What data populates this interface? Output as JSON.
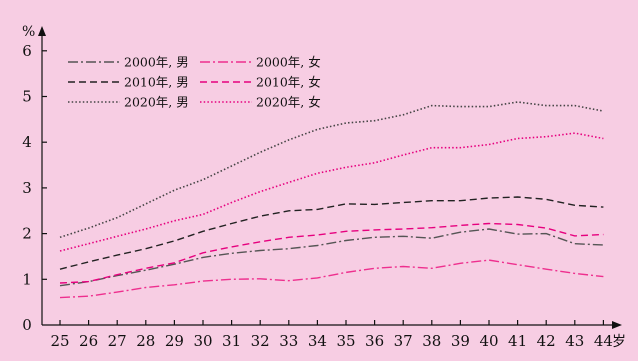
{
  "chart_data": {
    "type": "line",
    "ylabel": "%",
    "xunit": "岁",
    "ylim": [
      0,
      6
    ],
    "yticks": [
      "0",
      "1",
      "2",
      "3",
      "4",
      "5",
      "6"
    ],
    "x": [
      25,
      26,
      27,
      28,
      29,
      30,
      31,
      32,
      33,
      34,
      35,
      36,
      37,
      38,
      39,
      40,
      41,
      42,
      43,
      44
    ],
    "xtick_labels": [
      "25",
      "26",
      "27",
      "28",
      "29",
      "30",
      "31",
      "32",
      "33",
      "34",
      "35",
      "36",
      "37",
      "38",
      "39",
      "40",
      "41",
      "42",
      "43",
      "44"
    ],
    "grid": false,
    "legend_position": "top-left",
    "series": [
      {
        "name": "2000年, 男",
        "color": "#555555",
        "dash": "dashdot",
        "values": [
          0.86,
          0.95,
          1.08,
          1.2,
          1.33,
          1.48,
          1.57,
          1.63,
          1.67,
          1.74,
          1.85,
          1.92,
          1.94,
          1.9,
          2.03,
          2.1,
          1.99,
          2.0,
          1.78,
          1.75
        ]
      },
      {
        "name": "2000年, 女",
        "color": "#ee2f8e",
        "dash": "dashdot",
        "values": [
          0.6,
          0.63,
          0.72,
          0.82,
          0.88,
          0.96,
          1.0,
          1.01,
          0.97,
          1.03,
          1.15,
          1.24,
          1.28,
          1.24,
          1.35,
          1.42,
          1.32,
          1.22,
          1.13,
          1.06
        ]
      },
      {
        "name": "2010年, 男",
        "color": "#222222",
        "dash": "dashed",
        "values": [
          1.22,
          1.38,
          1.53,
          1.67,
          1.84,
          2.05,
          2.22,
          2.38,
          2.5,
          2.53,
          2.65,
          2.64,
          2.68,
          2.72,
          2.72,
          2.78,
          2.8,
          2.75,
          2.62,
          2.58
        ]
      },
      {
        "name": "2010年, 女",
        "color": "#e6007e",
        "dash": "dashed",
        "values": [
          0.92,
          0.95,
          1.1,
          1.24,
          1.36,
          1.58,
          1.71,
          1.82,
          1.92,
          1.97,
          2.05,
          2.08,
          2.1,
          2.13,
          2.18,
          2.22,
          2.2,
          2.12,
          1.95,
          1.98
        ]
      },
      {
        "name": "2020年, 男",
        "color": "#444444",
        "dash": "dotted",
        "values": [
          1.92,
          2.12,
          2.35,
          2.65,
          2.95,
          3.18,
          3.48,
          3.78,
          4.05,
          4.28,
          4.42,
          4.47,
          4.6,
          4.8,
          4.78,
          4.78,
          4.88,
          4.8,
          4.8,
          4.68
        ]
      },
      {
        "name": "2020年, 女",
        "color": "#e6007e",
        "dash": "dotted",
        "values": [
          1.62,
          1.78,
          1.94,
          2.1,
          2.28,
          2.42,
          2.68,
          2.92,
          3.12,
          3.32,
          3.45,
          3.55,
          3.72,
          3.88,
          3.88,
          3.95,
          4.08,
          4.12,
          4.2,
          4.08
        ]
      }
    ]
  }
}
